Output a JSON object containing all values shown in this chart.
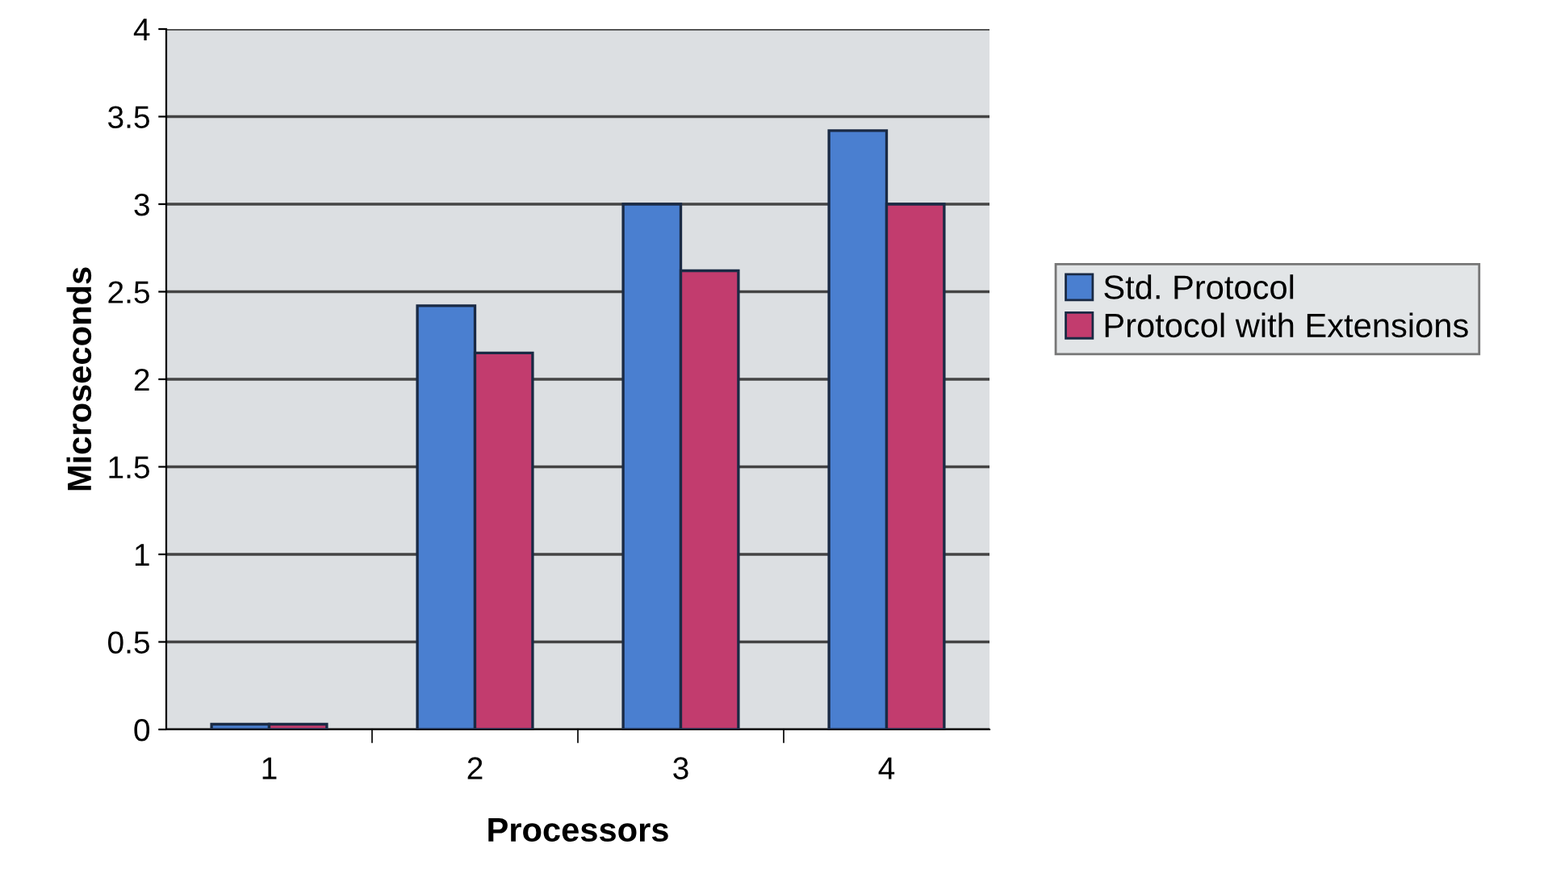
{
  "chart_data": {
    "type": "bar",
    "xlabel": "Processors",
    "ylabel": "Microseconds",
    "categories": [
      "1",
      "2",
      "3",
      "4"
    ],
    "series": [
      {
        "name": "Std. Protocol",
        "color": "#4a7fd0",
        "values": [
          0.03,
          2.42,
          3.0,
          3.42
        ]
      },
      {
        "name": "Protocol with Extensions",
        "color": "#c23c6e",
        "values": [
          0.03,
          2.15,
          2.62,
          3.0
        ]
      }
    ],
    "ylim": [
      0,
      4
    ],
    "yticks": [
      0,
      0.5,
      1,
      1.5,
      2,
      2.5,
      3,
      3.5,
      4
    ],
    "grid": "y",
    "legend": "right"
  }
}
